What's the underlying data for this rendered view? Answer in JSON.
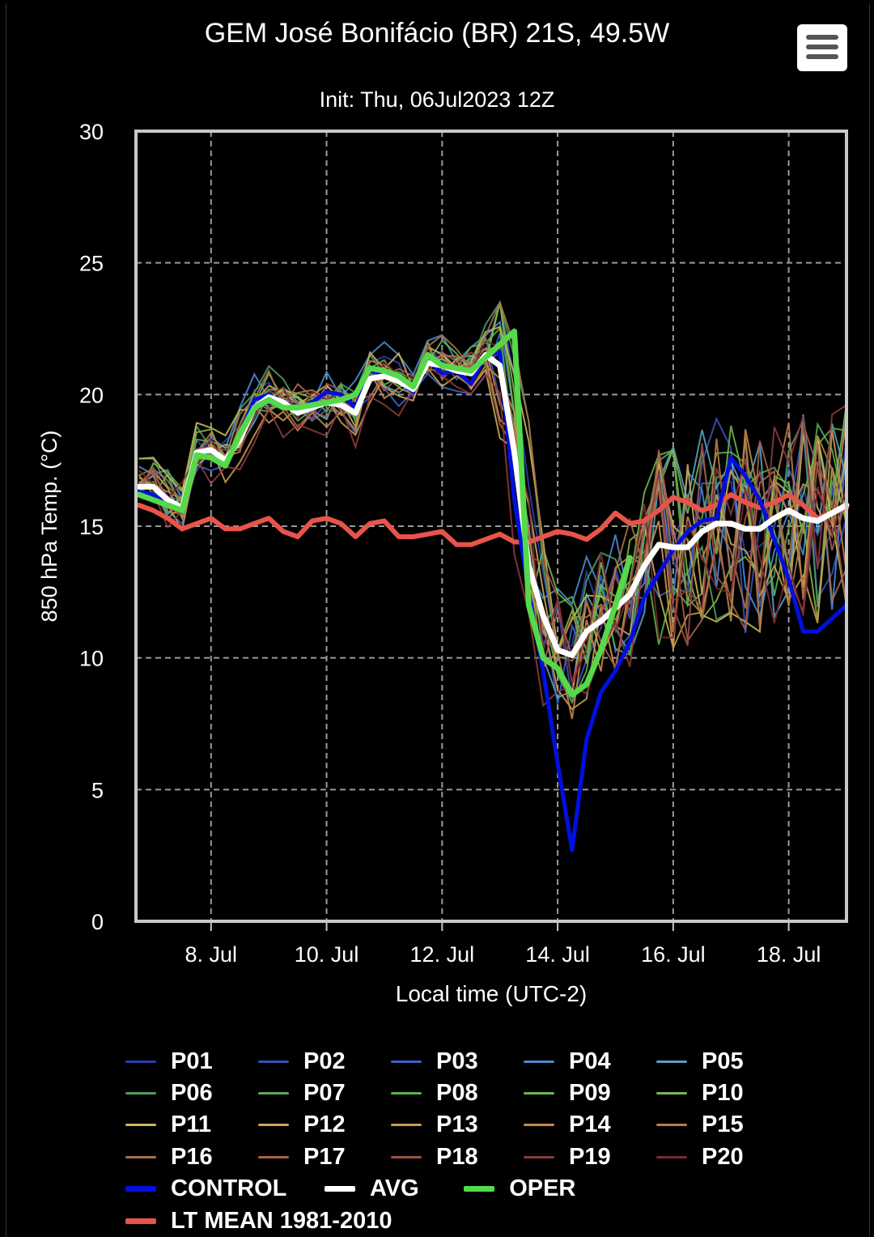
{
  "header": {
    "title": "GEM José Bonifácio (BR) 21S, 49.5W",
    "subtitle": "Init: Thu, 06Jul2023 12Z",
    "menu_icon": "hamburger-menu-icon"
  },
  "chart_data": {
    "type": "line",
    "ylabel": "850 hPa Temp. (°C)",
    "xlabel": "Local time (UTC-2)",
    "ylim": [
      0,
      30
    ],
    "xlim": [
      6.7,
      19.0
    ],
    "yticks": [
      "0",
      "5",
      "10",
      "15",
      "20",
      "25",
      "30"
    ],
    "xticks": [
      {
        "label": "8. Jul",
        "day": 8
      },
      {
        "label": "10. Jul",
        "day": 10
      },
      {
        "label": "12. Jul",
        "day": 12
      },
      {
        "label": "14. Jul",
        "day": 14
      },
      {
        "label": "16. Jul",
        "day": 16
      },
      {
        "label": "18. Jul",
        "day": 18
      }
    ],
    "grid": true,
    "legend_position": "bottom",
    "x_unit": "day of July (local time)",
    "highlight_series": [
      {
        "name": "CONTROL",
        "color": "#0010e0",
        "width": 5,
        "x": [
          6.75,
          7.0,
          7.25,
          7.5,
          7.75,
          8.0,
          8.25,
          8.5,
          8.75,
          9.0,
          9.25,
          9.5,
          9.75,
          10.0,
          10.25,
          10.5,
          10.75,
          11.0,
          11.25,
          11.5,
          11.75,
          12.0,
          12.25,
          12.5,
          12.75,
          13.0,
          13.25,
          13.5,
          13.75,
          14.0,
          14.25,
          14.5,
          14.75,
          15.0,
          15.25,
          15.5,
          15.75,
          16.0,
          16.25,
          16.5,
          16.75,
          17.0,
          17.25,
          17.5,
          17.75,
          18.0,
          18.25,
          18.5,
          18.75,
          19.0
        ],
        "y": [
          16.3,
          16.2,
          15.8,
          15.6,
          17.8,
          17.9,
          17.5,
          18.5,
          19.8,
          20.0,
          19.6,
          19.4,
          19.7,
          20.1,
          20.0,
          19.5,
          20.9,
          20.8,
          20.5,
          20.1,
          21.3,
          20.8,
          20.9,
          20.4,
          21.5,
          21.6,
          16.0,
          12.5,
          9.5,
          6.0,
          2.7,
          6.9,
          8.7,
          9.5,
          10.6,
          12.3,
          13.2,
          14.1,
          14.8,
          15.2,
          15.3,
          17.6,
          16.9,
          16.0,
          14.5,
          13.0,
          11.0,
          11.0,
          11.5,
          12.0
        ]
      },
      {
        "name": "AVG",
        "color": "#ffffff",
        "width": 7,
        "x": [
          6.75,
          7.0,
          7.25,
          7.5,
          7.75,
          8.0,
          8.25,
          8.5,
          8.75,
          9.0,
          9.25,
          9.5,
          9.75,
          10.0,
          10.25,
          10.5,
          10.75,
          11.0,
          11.25,
          11.5,
          11.75,
          12.0,
          12.25,
          12.5,
          12.75,
          13.0,
          13.25,
          13.5,
          13.75,
          14.0,
          14.25,
          14.5,
          14.75,
          15.0,
          15.25,
          15.5,
          15.75,
          16.0,
          16.25,
          16.5,
          16.75,
          17.0,
          17.25,
          17.5,
          17.75,
          18.0,
          18.25,
          18.5,
          18.75,
          19.0
        ],
        "y": [
          16.5,
          16.5,
          16.0,
          15.7,
          17.8,
          17.9,
          17.5,
          18.3,
          19.5,
          19.9,
          19.7,
          19.3,
          19.5,
          19.7,
          19.6,
          19.3,
          20.6,
          20.7,
          20.5,
          20.2,
          21.2,
          21.1,
          20.9,
          20.8,
          21.5,
          21.1,
          17.8,
          13.5,
          11.6,
          10.3,
          10.1,
          11.0,
          11.4,
          11.9,
          12.4,
          13.5,
          14.3,
          14.2,
          14.2,
          14.8,
          15.1,
          15.1,
          14.9,
          14.9,
          15.3,
          15.6,
          15.3,
          15.2,
          15.5,
          15.8
        ]
      },
      {
        "name": "OPER",
        "color": "#55d94a",
        "width": 7,
        "x": [
          6.75,
          7.0,
          7.25,
          7.5,
          7.75,
          8.0,
          8.25,
          8.5,
          8.75,
          9.0,
          9.25,
          9.5,
          9.75,
          10.0,
          10.25,
          10.5,
          10.75,
          11.0,
          11.25,
          11.5,
          11.75,
          12.0,
          12.25,
          12.5,
          12.75,
          13.0,
          13.25,
          13.5,
          13.75,
          14.0,
          14.25,
          14.5,
          14.75,
          15.0,
          15.25
        ],
        "y": [
          16.2,
          16.0,
          15.8,
          15.6,
          17.7,
          17.6,
          17.3,
          18.5,
          19.5,
          19.8,
          19.5,
          19.5,
          19.6,
          19.7,
          19.8,
          20.0,
          21.0,
          20.9,
          20.7,
          20.3,
          21.5,
          21.1,
          21.0,
          20.9,
          21.4,
          21.9,
          22.4,
          12.0,
          10.0,
          9.6,
          8.6,
          9.0,
          10.3,
          12.0,
          13.8
        ]
      },
      {
        "name": "LT MEAN 1981-2010",
        "color": "#e8544a",
        "width": 6,
        "x": [
          6.75,
          7.0,
          7.25,
          7.5,
          7.75,
          8.0,
          8.25,
          8.5,
          8.75,
          9.0,
          9.25,
          9.5,
          9.75,
          10.0,
          10.25,
          10.5,
          10.75,
          11.0,
          11.25,
          11.5,
          11.75,
          12.0,
          12.25,
          12.5,
          12.75,
          13.0,
          13.25,
          13.5,
          13.75,
          14.0,
          14.25,
          14.5,
          14.75,
          15.0,
          15.25,
          15.5,
          15.75,
          16.0,
          16.25,
          16.5,
          16.75,
          17.0,
          17.25,
          17.5,
          17.75,
          18.0,
          18.25,
          18.5,
          18.75,
          19.0
        ],
        "y": [
          15.8,
          15.6,
          15.3,
          14.9,
          15.1,
          15.3,
          14.9,
          14.9,
          15.1,
          15.3,
          14.8,
          14.6,
          15.2,
          15.3,
          15.1,
          14.6,
          15.1,
          15.2,
          14.6,
          14.6,
          14.7,
          14.8,
          14.3,
          14.3,
          14.5,
          14.7,
          14.4,
          14.4,
          14.6,
          14.8,
          14.7,
          14.5,
          14.9,
          15.5,
          15.1,
          15.2,
          15.6,
          16.1,
          15.9,
          15.6,
          15.8,
          16.2,
          15.9,
          15.7,
          15.9,
          16.2,
          15.8,
          15.3,
          15.5,
          15.7
        ]
      }
    ],
    "member_series": [
      {
        "name": "P01",
        "color": "#2b3fa8"
      },
      {
        "name": "P02",
        "color": "#3652b8"
      },
      {
        "name": "P03",
        "color": "#3a64c7"
      },
      {
        "name": "P04",
        "color": "#4a8ad0"
      },
      {
        "name": "P05",
        "color": "#56a0c4"
      },
      {
        "name": "P06",
        "color": "#4f9a62"
      },
      {
        "name": "P07",
        "color": "#5aa85a"
      },
      {
        "name": "P08",
        "color": "#5cb048"
      },
      {
        "name": "P09",
        "color": "#6ab84a"
      },
      {
        "name": "P10",
        "color": "#7fb54a"
      },
      {
        "name": "P11",
        "color": "#c8b85a"
      },
      {
        "name": "P12",
        "color": "#c9a85a"
      },
      {
        "name": "P13",
        "color": "#c89a50"
      },
      {
        "name": "P14",
        "color": "#c48a48"
      },
      {
        "name": "P15",
        "color": "#bb7c48"
      },
      {
        "name": "P16",
        "color": "#a8704c"
      },
      {
        "name": "P17",
        "color": "#a8604a"
      },
      {
        "name": "P18",
        "color": "#9a5048"
      },
      {
        "name": "P19",
        "color": "#8a3a3a"
      },
      {
        "name": "P20",
        "color": "#7a2a30"
      }
    ]
  }
}
